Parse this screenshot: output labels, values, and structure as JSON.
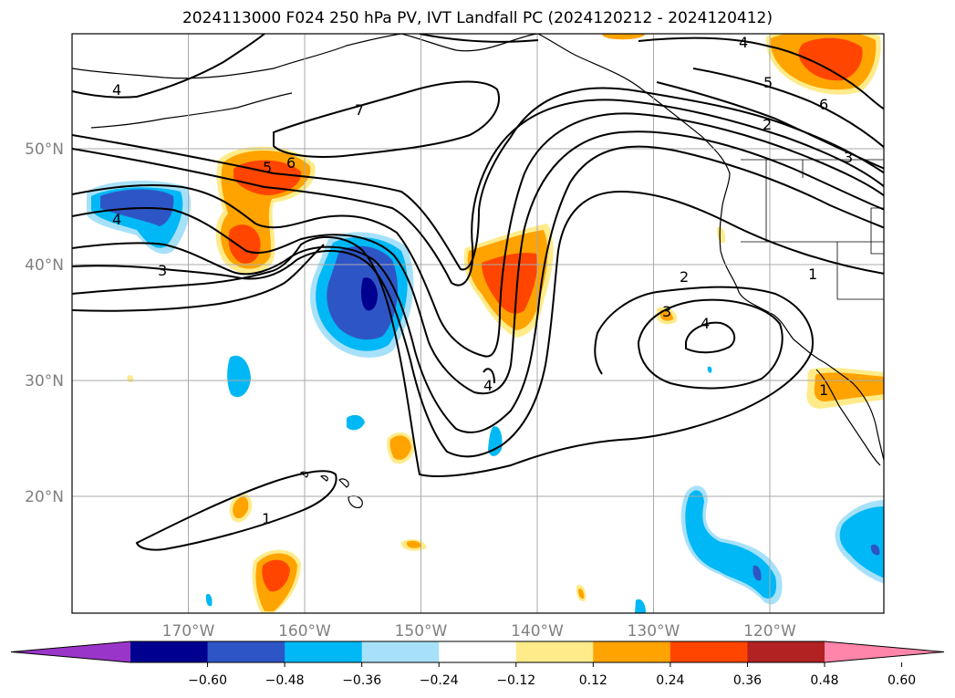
{
  "title": "2024113000 F024 250 hPa PV, IVT Landfall PC (2024120212 - 2024120412)",
  "map": {
    "lon_ticks": [
      {
        "value": -170,
        "label": "170°W"
      },
      {
        "value": -160,
        "label": "160°W"
      },
      {
        "value": -150,
        "label": "150°W"
      },
      {
        "value": -140,
        "label": "140°W"
      },
      {
        "value": -130,
        "label": "130°W"
      },
      {
        "value": -120,
        "label": "120°W"
      }
    ],
    "lat_ticks": [
      {
        "value": 50,
        "label": "50°N"
      },
      {
        "value": 40,
        "label": "40°N"
      },
      {
        "value": 30,
        "label": "30°N"
      },
      {
        "value": 20,
        "label": "20°N"
      }
    ],
    "contour_labels": [
      "1",
      "1",
      "1",
      "2",
      "2",
      "3",
      "3",
      "3",
      "4",
      "4",
      "4",
      "4",
      "4",
      "5",
      "5",
      "6",
      "6",
      "7"
    ]
  },
  "colorbar": {
    "colors": [
      "#9a35c9",
      "#000090",
      "#2e55c6",
      "#00b8f5",
      "#a7e1f9",
      "#ffffff",
      "#ffeb8a",
      "#ffa300",
      "#ff4500",
      "#b22222",
      "#ff85aa"
    ],
    "tick_labels": [
      "−0.60",
      "−0.48",
      "−0.36",
      "−0.24",
      "−0.12",
      "0.12",
      "0.24",
      "0.36",
      "0.48",
      "0.60"
    ]
  }
}
